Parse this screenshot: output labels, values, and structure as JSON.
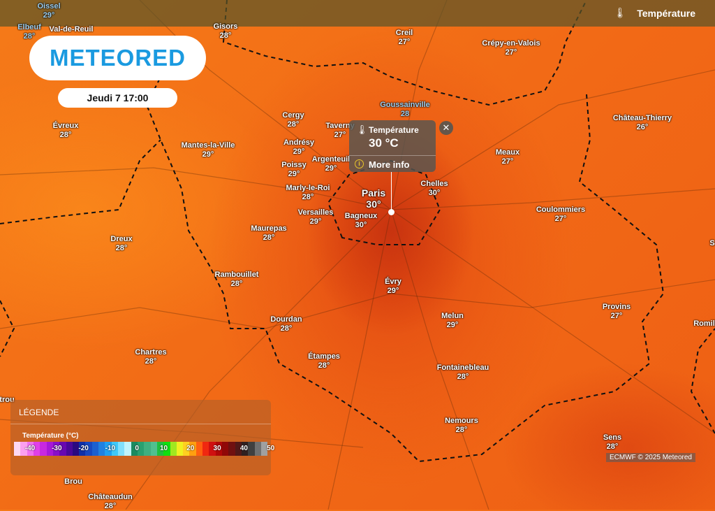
{
  "header": {
    "layer_label": "Température",
    "layer_icon": "thermometer-icon"
  },
  "logo": {
    "text": "METEORED"
  },
  "date": "Jeudi 7 17:00",
  "popup": {
    "title": "Température",
    "value": "30 °C",
    "more_info": "More info"
  },
  "cities": [
    {
      "name": "Oissel",
      "temp": "29°",
      "muted": true
    },
    {
      "name": "Elbeuf",
      "temp": "28°",
      "muted": true
    },
    {
      "name": "Val-de-Reuil",
      "temp": ""
    },
    {
      "name": "Gisors",
      "temp": "28°"
    },
    {
      "name": "Creil",
      "temp": "27°"
    },
    {
      "name": "Crépy-en-Valois",
      "temp": "27°"
    },
    {
      "name": "Château-Thierry",
      "temp": "26°"
    },
    {
      "name": "Évreux",
      "temp": "28°"
    },
    {
      "name": "Cergy",
      "temp": "28°"
    },
    {
      "name": "Taverny",
      "temp": "27°"
    },
    {
      "name": "Goussainville",
      "temp": "28",
      "muted": true
    },
    {
      "name": "Andrésy",
      "temp": "29°"
    },
    {
      "name": "Mantes-la-Ville",
      "temp": "29°"
    },
    {
      "name": "Poissy",
      "temp": "29°"
    },
    {
      "name": "Argenteuil",
      "temp": "29°"
    },
    {
      "name": "Meaux",
      "temp": "27°"
    },
    {
      "name": "Marly-le-Roi",
      "temp": "28°"
    },
    {
      "name": "Paris",
      "temp": "30°"
    },
    {
      "name": "Chelles",
      "temp": "30°"
    },
    {
      "name": "Versailles",
      "temp": "29°"
    },
    {
      "name": "Bagneux",
      "temp": "30°"
    },
    {
      "name": "Coulommiers",
      "temp": "27°"
    },
    {
      "name": "Maurepas",
      "temp": "28°"
    },
    {
      "name": "Dreux",
      "temp": "28°"
    },
    {
      "name": "Rambouillet",
      "temp": "28°"
    },
    {
      "name": "Évry",
      "temp": "29°"
    },
    {
      "name": "Provins",
      "temp": "27°"
    },
    {
      "name": "Dourdan",
      "temp": "28°"
    },
    {
      "name": "Melun",
      "temp": "29°"
    },
    {
      "name": "Romill",
      "temp": ""
    },
    {
      "name": "Chartres",
      "temp": "28°"
    },
    {
      "name": "Étampes",
      "temp": "28°"
    },
    {
      "name": "Fontainebleau",
      "temp": "28°"
    },
    {
      "name": "Nemours",
      "temp": "28°"
    },
    {
      "name": "Sens",
      "temp": "28°"
    },
    {
      "name": "Châteaudun",
      "temp": "28°"
    },
    {
      "name": "S",
      "temp": ""
    },
    {
      "name": "trou",
      "temp": ""
    },
    {
      "name": "Brou",
      "temp": ""
    }
  ],
  "legend": {
    "title": "LÉGENDE",
    "subtitle": "Température (°C)",
    "ticks": [
      "-40",
      "-30",
      "-20",
      "-10",
      "0",
      "10",
      "20",
      "30",
      "40",
      "50"
    ],
    "colors": [
      "#fcd8f4",
      "#fba0f0",
      "#f070f0",
      "#e040e8",
      "#c828e0",
      "#a818d8",
      "#8810c8",
      "#6808b0",
      "#4a0898",
      "#2a0a80",
      "#1030a8",
      "#1848c0",
      "#1c60d0",
      "#2080e0",
      "#20a0f0",
      "#40c8f8",
      "#80e0fc",
      "#c0f4fc",
      "#1a8a60",
      "#2aa070",
      "#40b080",
      "#50c090",
      "#20c040",
      "#10e010",
      "#a0e820",
      "#f0f020",
      "#ffd020",
      "#ffa010",
      "#ff6010",
      "#f02810",
      "#d01010",
      "#b00808",
      "#900808",
      "#701010",
      "#501818",
      "#302020",
      "#404040",
      "#707070",
      "#a0a0a0"
    ]
  },
  "credit": "ECMWF © 2025 Meteored"
}
